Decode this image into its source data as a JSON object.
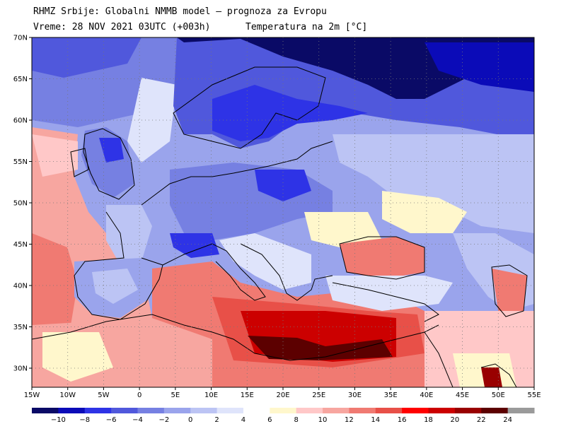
{
  "header": {
    "line1": "RHMZ Srbije: Globalni NMMB model — prognoza za Evropu",
    "valid_time": "Vreme: 28 NOV 2021 03UTC (+003h)",
    "field": "Temperatura na 2m [°C]"
  },
  "map": {
    "lon_labels": [
      "15W",
      "10W",
      "5W",
      "0",
      "5E",
      "10E",
      "15E",
      "20E",
      "25E",
      "30E",
      "35E",
      "40E",
      "45E",
      "50E",
      "55E"
    ],
    "lat_labels": [
      "70N",
      "65N",
      "60N",
      "55N",
      "50N",
      "45N",
      "40N",
      "35N",
      "30N"
    ]
  },
  "legend": {
    "labels": [
      "−10",
      "−8",
      "−6",
      "−4",
      "−2",
      "0",
      "2",
      "4",
      "6",
      "8",
      "10",
      "12",
      "14",
      "16",
      "18",
      "20",
      "22",
      "24"
    ],
    "colors": [
      "#0a0a66",
      "#0b0bb8",
      "#2e33e6",
      "#5058dc",
      "#7680e2",
      "#9aa4ec",
      "#bcc4f4",
      "#dfe4fb",
      "#ffffff",
      "#fff7cc",
      "#ffc8c8",
      "#f7a6a0",
      "#f07a72",
      "#e85048",
      "#ff0000",
      "#cc0000",
      "#990000",
      "#5c0000",
      "#9a9a9a"
    ]
  }
}
